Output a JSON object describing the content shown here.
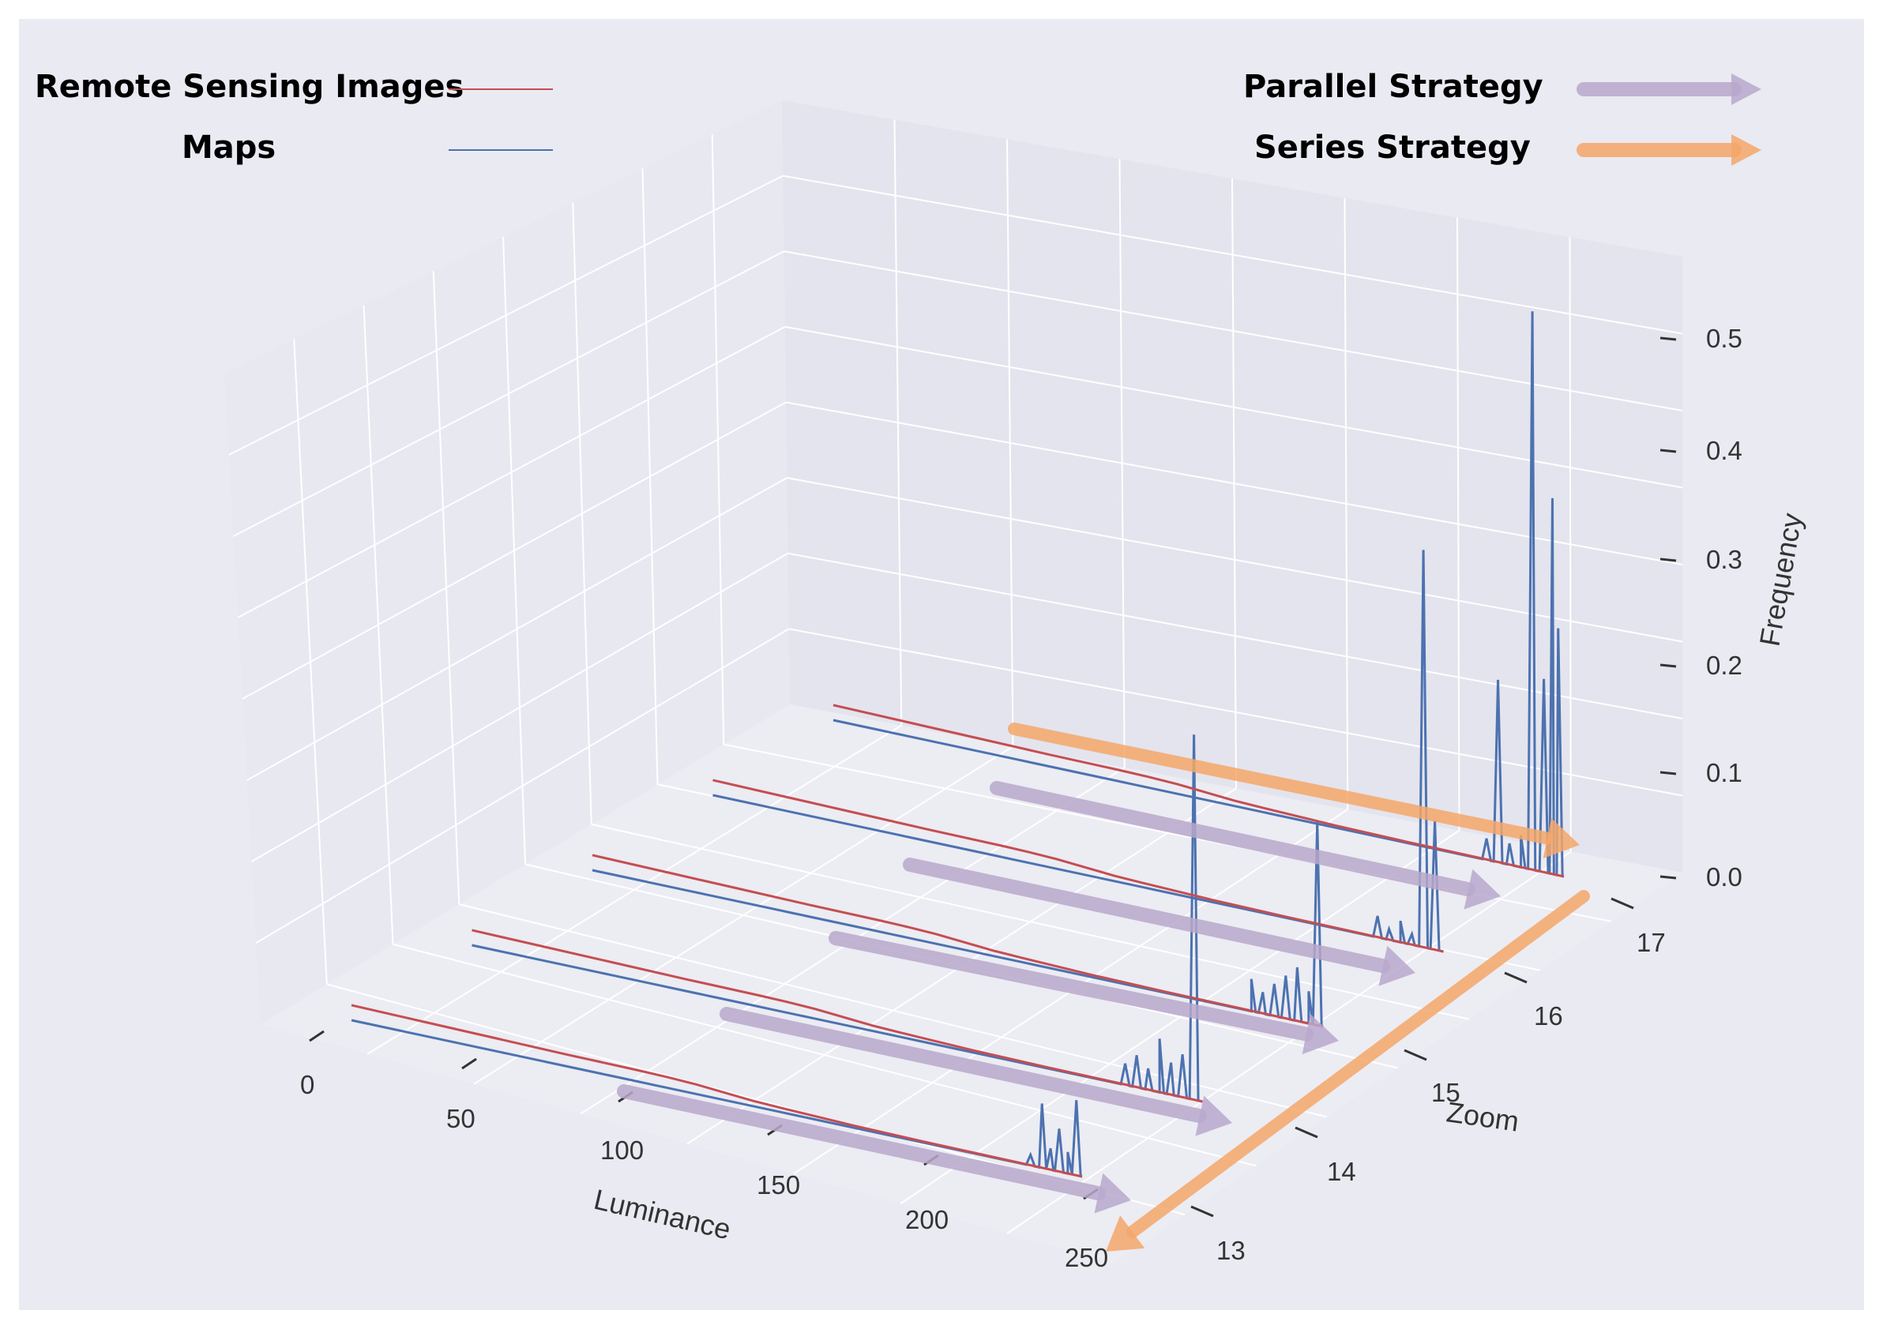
{
  "colors": {
    "background": "#eaeaf2",
    "remote_sensing": "#c44e52",
    "maps": "#4c72b0",
    "parallel_arrow": "#b9a8cc",
    "series_arrow": "#f5a76a"
  },
  "legend": {
    "remote_sensing_label": "Remote Sensing Images",
    "maps_label": "Maps",
    "parallel_label": "Parallel Strategy",
    "series_label": "Series Strategy"
  },
  "chart_data": {
    "type": "line",
    "projection": "3d",
    "title": "",
    "xlabel": "Luminance",
    "ylabel": "Zoom",
    "zlabel": "Frequency",
    "xlim": [
      0,
      255
    ],
    "ylim": [
      13,
      17
    ],
    "zlim": [
      0,
      0.5
    ],
    "x_ticks": [
      "0",
      "50",
      "100",
      "150",
      "200",
      "250"
    ],
    "y_ticks": [
      "13",
      "14",
      "15",
      "16",
      "17"
    ],
    "z_ticks": [
      "0.0",
      "0.1",
      "0.2",
      "0.3",
      "0.4",
      "0.5"
    ],
    "grid": true,
    "legend_position": "top",
    "series": [
      {
        "name": "Remote Sensing Images",
        "description_shape": "smooth decreasing curve",
        "zoom_levels": [
          13,
          14,
          15,
          16,
          17
        ],
        "x": [
          0,
          25,
          50,
          75,
          100,
          110,
          120,
          130,
          140,
          150,
          175,
          200,
          225,
          255
        ],
        "values": [
          0.014,
          0.013,
          0.012,
          0.011,
          0.0105,
          0.01,
          0.009,
          0.007,
          0.005,
          0.004,
          0.002,
          0.001,
          0.0005,
          0.0
        ]
      },
      {
        "name": "Maps",
        "description_shape": "near zero then sharp spikes at high luminance",
        "zoom_levels": [
          13,
          14,
          15,
          16,
          17
        ],
        "spikes": [
          {
            "zoom": 13,
            "x": [
              237,
              241,
              244,
              247,
              250,
              253
            ],
            "values": [
              0.01,
              0.06,
              0.02,
              0.04,
              0.02,
              0.07
            ]
          },
          {
            "zoom": 14,
            "x": [
              228,
              232,
              236,
              240,
              244,
              248,
              252
            ],
            "values": [
              0.02,
              0.03,
              0.02,
              0.05,
              0.03,
              0.04,
              0.34
            ]
          },
          {
            "zoom": 15,
            "x": [
              230,
              234,
              238,
              242,
              246,
              250,
              253
            ],
            "values": [
              0.03,
              0.02,
              0.03,
              0.04,
              0.05,
              0.03,
              0.19
            ]
          },
          {
            "zoom": 16,
            "x": [
              232,
              236,
              240,
              244,
              248,
              252
            ],
            "values": [
              0.02,
              0.01,
              0.02,
              0.01,
              0.37,
              0.12
            ]
          },
          {
            "zoom": 17,
            "x": [
              228,
              232,
              236,
              240,
              244,
              248,
              251,
              253
            ],
            "values": [
              0.02,
              0.17,
              0.02,
              0.03,
              0.52,
              0.18,
              0.35,
              0.23
            ]
          }
        ]
      }
    ]
  }
}
